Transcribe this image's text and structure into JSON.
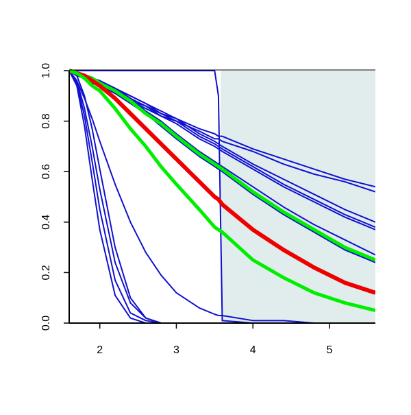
{
  "chart_data": {
    "type": "line",
    "x": [
      1.6,
      1.7,
      1.8,
      1.9,
      2.0,
      2.2,
      2.4,
      2.6,
      2.8,
      3.0,
      3.3,
      3.5,
      3.55,
      3.6,
      4.0,
      4.4,
      4.8,
      5.2,
      5.6
    ],
    "xlim": [
      1.6,
      5.6
    ],
    "xticks": [
      2,
      3,
      4,
      5
    ],
    "ylim": [
      0,
      1
    ],
    "yticks": [
      {
        "value": 0,
        "label": "0.0"
      },
      0.2,
      0.4,
      0.6,
      0.8,
      {
        "value": 1,
        "label": "1.0"
      }
    ],
    "shaded_region": {
      "x": [
        3.58,
        5.6
      ],
      "color": "#e0edec"
    },
    "series": [
      {
        "color": "#1010d0",
        "width": 2,
        "values": [
          1,
          0.94,
          0.78,
          0.57,
          0.37,
          0.11,
          0.02,
          0,
          0,
          0,
          0,
          0,
          0,
          0,
          0,
          0,
          0,
          0,
          0
        ]
      },
      {
        "color": "#1010d0",
        "width": 2,
        "values": [
          1,
          0.95,
          0.82,
          0.64,
          0.45,
          0.17,
          0.04,
          0.01,
          0,
          0,
          0,
          0,
          0,
          0,
          0,
          0,
          0,
          0,
          0
        ]
      },
      {
        "color": "#1010d0",
        "width": 2,
        "values": [
          1,
          0.96,
          0.85,
          0.7,
          0.53,
          0.24,
          0.08,
          0.02,
          0,
          0,
          0,
          0,
          0,
          0,
          0,
          0,
          0,
          0,
          0
        ]
      },
      {
        "color": "#1010d0",
        "width": 2,
        "values": [
          1,
          0.98,
          0.9,
          0.77,
          0.61,
          0.3,
          0.1,
          0.02,
          0,
          0,
          0,
          0,
          0,
          0,
          0,
          0,
          0,
          0,
          0
        ]
      },
      {
        "color": "#1010d0",
        "width": 2,
        "values": [
          1,
          0.96,
          0.89,
          0.81,
          0.72,
          0.55,
          0.4,
          0.28,
          0.19,
          0.12,
          0.06,
          0.035,
          0.03,
          0.03,
          0.01,
          0.01,
          0,
          0,
          0
        ]
      },
      {
        "color": "#1010d0",
        "width": 2,
        "values": [
          1,
          1,
          1,
          1,
          1,
          1,
          1,
          1,
          1,
          1,
          1,
          1,
          0.9,
          0.01,
          0,
          0,
          0,
          0,
          0
        ]
      },
      {
        "color": "#1010d0",
        "width": 2,
        "values": [
          1,
          0.98,
          0.97,
          0.95,
          0.94,
          0.91,
          0.88,
          0.86,
          0.83,
          0.81,
          0.77,
          0.75,
          0.74,
          0.74,
          0.69,
          0.65,
          0.61,
          0.57,
          0.54
        ]
      },
      {
        "color": "#1010d0",
        "width": 2,
        "values": [
          1,
          0.98,
          0.97,
          0.95,
          0.94,
          0.91,
          0.88,
          0.85,
          0.82,
          0.8,
          0.76,
          0.73,
          0.73,
          0.72,
          0.68,
          0.63,
          0.59,
          0.56,
          0.52
        ]
      },
      {
        "color": "#1010d0",
        "width": 2,
        "values": [
          1,
          0.99,
          0.98,
          0.97,
          0.96,
          0.93,
          0.9,
          0.87,
          0.84,
          0.81,
          0.75,
          0.72,
          0.71,
          0.7,
          0.63,
          0.57,
          0.51,
          0.45,
          0.4
        ]
      },
      {
        "color": "#1010d0",
        "width": 2,
        "values": [
          1,
          0.99,
          0.98,
          0.97,
          0.96,
          0.93,
          0.9,
          0.87,
          0.83,
          0.8,
          0.74,
          0.71,
          0.7,
          0.69,
          0.62,
          0.55,
          0.49,
          0.43,
          0.38
        ]
      },
      {
        "color": "#1010d0",
        "width": 2,
        "values": [
          1,
          0.99,
          0.98,
          0.97,
          0.96,
          0.93,
          0.89,
          0.86,
          0.82,
          0.79,
          0.73,
          0.7,
          0.69,
          0.68,
          0.61,
          0.54,
          0.48,
          0.42,
          0.37
        ]
      },
      {
        "color": "#1010d0",
        "width": 2,
        "values": [
          1,
          0.99,
          0.98,
          0.97,
          0.96,
          0.93,
          0.89,
          0.84,
          0.8,
          0.75,
          0.68,
          0.64,
          0.63,
          0.62,
          0.54,
          0.46,
          0.39,
          0.33,
          0.27
        ]
      },
      {
        "color": "#1010d0",
        "width": 2,
        "values": [
          1,
          0.99,
          0.98,
          0.96,
          0.95,
          0.91,
          0.87,
          0.83,
          0.78,
          0.73,
          0.66,
          0.62,
          0.61,
          0.6,
          0.51,
          0.43,
          0.36,
          0.29,
          0.24
        ]
      },
      {
        "color": "#00ee00",
        "width": 5,
        "values": [
          1,
          0.99,
          0.98,
          0.97,
          0.95,
          0.92,
          0.88,
          0.83,
          0.79,
          0.74,
          0.67,
          0.63,
          0.62,
          0.61,
          0.52,
          0.44,
          0.37,
          0.3,
          0.25
        ]
      },
      {
        "color": "#ee0000",
        "width": 6,
        "values": [
          1,
          0.99,
          0.98,
          0.96,
          0.94,
          0.89,
          0.83,
          0.77,
          0.71,
          0.65,
          0.56,
          0.5,
          0.49,
          0.47,
          0.37,
          0.29,
          0.22,
          0.16,
          0.12
        ]
      },
      {
        "color": "#00ee00",
        "width": 5,
        "values": [
          1,
          0.99,
          0.97,
          0.94,
          0.92,
          0.85,
          0.77,
          0.7,
          0.62,
          0.55,
          0.45,
          0.38,
          0.37,
          0.36,
          0.25,
          0.18,
          0.12,
          0.08,
          0.05
        ]
      }
    ]
  }
}
